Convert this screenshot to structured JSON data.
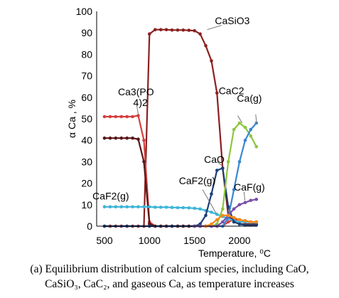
{
  "chart_data": {
    "type": "line",
    "xlabel": "Temperature, ⁰C",
    "ylabel": "α Ca , %",
    "xlim": [
      500,
      2200
    ],
    "ylim": [
      0,
      100
    ],
    "xticks": [
      500,
      1000,
      1500,
      2000
    ],
    "yticks": [
      0,
      10,
      20,
      30,
      40,
      50,
      60,
      70,
      80,
      90,
      100
    ],
    "grid": false,
    "legend": "inline labels",
    "series": [
      {
        "name": "CaSiO3",
        "color": "#8b2020",
        "x": [
          500,
          563,
          625,
          688,
          750,
          813,
          875,
          938,
          1000,
          1063,
          1125,
          1188,
          1250,
          1313,
          1375,
          1438,
          1500,
          1563,
          1625,
          1688,
          1750,
          1813,
          1875,
          1938,
          2000,
          2063,
          2125,
          2188
        ],
        "y": [
          0,
          0,
          0,
          0,
          0,
          0,
          0,
          0,
          89.5,
          91.5,
          91.5,
          91.5,
          91.3,
          91.3,
          91.3,
          91.2,
          91.0,
          89.5,
          84,
          77,
          62,
          27,
          5,
          2,
          1,
          1,
          1,
          1
        ]
      },
      {
        "name": "Ca3(PO4)2",
        "color": "#d43f3f",
        "x": [
          500,
          563,
          625,
          688,
          750,
          813,
          875,
          938,
          1000,
          1063,
          1125,
          1188,
          1250,
          1313,
          1375,
          1438,
          1500,
          1563,
          1625,
          1688,
          1750,
          1813,
          1875,
          1938,
          2000,
          2063,
          2125,
          2188
        ],
        "y": [
          51,
          51,
          51,
          51,
          51,
          51,
          51.5,
          40,
          2,
          0,
          0,
          0,
          0,
          0,
          0,
          0,
          0,
          0,
          0,
          0,
          0,
          0,
          2,
          3,
          3,
          2.5,
          2,
          2
        ]
      },
      {
        "name": "",
        "color": "#5a1515",
        "x": [
          500,
          563,
          625,
          688,
          750,
          813,
          875,
          938,
          1000,
          1063,
          1125,
          1188,
          1250,
          1313,
          1375,
          1438,
          1500
        ],
        "y": [
          41,
          41,
          41,
          41,
          41,
          41,
          40.5,
          30,
          1,
          0,
          0,
          0,
          0,
          0,
          0,
          0,
          0
        ]
      },
      {
        "name": "CaF2(g)",
        "color": "#3cb4d8",
        "x": [
          500,
          563,
          625,
          688,
          750,
          813,
          875,
          938,
          1000,
          1063,
          1125,
          1188,
          1250,
          1313,
          1375,
          1438,
          1500,
          1563,
          1625,
          1688,
          1750,
          1813,
          1875,
          1938,
          2000,
          2063,
          2125,
          2188
        ],
        "y": [
          9,
          9,
          9,
          9,
          9,
          9,
          9,
          9,
          9,
          8.8,
          8.8,
          8.8,
          8.7,
          8.6,
          8.6,
          8.5,
          8.3,
          8,
          7.3,
          6.5,
          5.5,
          4.5,
          3.5,
          2.5,
          2,
          2,
          1.8,
          1.8
        ]
      },
      {
        "name": "CaO",
        "color": "#1c3f78",
        "x": [
          500,
          750,
          1000,
          1250,
          1500,
          1563,
          1625,
          1688,
          1750,
          1813,
          1875,
          1938,
          2000,
          2063,
          2125,
          2188
        ],
        "y": [
          0,
          0,
          0,
          0,
          0,
          1,
          5,
          15,
          26,
          27,
          9,
          2,
          1,
          0.5,
          0.5,
          0.5
        ]
      },
      {
        "name": "CaC2",
        "color": "#8ec63f",
        "x": [
          1500,
          1563,
          1625,
          1688,
          1750,
          1813,
          1875,
          1938,
          2000,
          2063,
          2125,
          2188
        ],
        "y": [
          0,
          0,
          0,
          0,
          1,
          8,
          30,
          45,
          48,
          46,
          42,
          37
        ]
      },
      {
        "name": "Ca(g)",
        "color": "#3a86d4",
        "x": [
          1500,
          1563,
          1625,
          1688,
          1750,
          1813,
          1875,
          1938,
          2000,
          2063,
          2125,
          2188
        ],
        "y": [
          0,
          0,
          0,
          0,
          0,
          0,
          4,
          17,
          30,
          40,
          45,
          48
        ]
      },
      {
        "name": "CaF(g)",
        "color": "#7a4fa8",
        "x": [
          1500,
          1563,
          1625,
          1688,
          1750,
          1813,
          1875,
          1938,
          2000,
          2063,
          2125,
          2188
        ],
        "y": [
          0,
          0,
          0,
          0,
          0,
          2,
          5,
          8,
          10,
          11,
          12,
          12.5
        ]
      },
      {
        "name": "",
        "color": "#f28a1e",
        "x": [
          1625,
          1688,
          1750,
          1813,
          1875,
          1938,
          2000,
          2063,
          2125,
          2188
        ],
        "y": [
          0,
          1,
          3,
          5,
          5,
          4,
          3,
          2.5,
          2,
          2
        ]
      }
    ],
    "annotations": [
      {
        "text": "CaSiO3",
        "x": 1920,
        "y": 94
      },
      {
        "text": "Ca3(PO",
        "x": 850,
        "y": 61
      },
      {
        "text": "4)2",
        "x": 900,
        "y": 56
      },
      {
        "text": "CaC2",
        "x": 1910,
        "y": 61.5
      },
      {
        "text": "Ca(g)",
        "x": 2110,
        "y": 58
      },
      {
        "text": "CaO",
        "x": 1720,
        "y": 29.5
      },
      {
        "text": "CaF2(g)",
        "x": 1530,
        "y": 19.5
      },
      {
        "text": "CaF(g)",
        "x": 2110,
        "y": 16.5
      },
      {
        "text": "CaF2(g)",
        "x": 570,
        "y": 12.5
      }
    ]
  },
  "caption": {
    "line1": "(a) Equilibrium distribution of calcium species, including CaO,",
    "line2": "CaSiO₃, CaC₂, and gaseous Ca, as temperature increases"
  }
}
